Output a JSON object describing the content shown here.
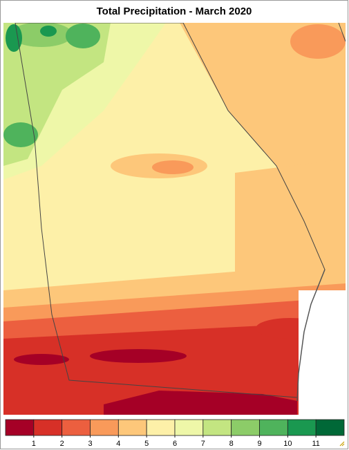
{
  "title": "Total Precipitation - March 2020",
  "legend": {
    "colors": [
      "#a50026",
      "#d73027",
      "#ec5f3f",
      "#f99a5a",
      "#fdc77a",
      "#fdf0a8",
      "#eef7a8",
      "#c3e581",
      "#8ccc68",
      "#4fb35c",
      "#1a9850",
      "#006837"
    ],
    "ticks": [
      1,
      2,
      3,
      4,
      5,
      6,
      7,
      8,
      9,
      10,
      11
    ]
  }
}
